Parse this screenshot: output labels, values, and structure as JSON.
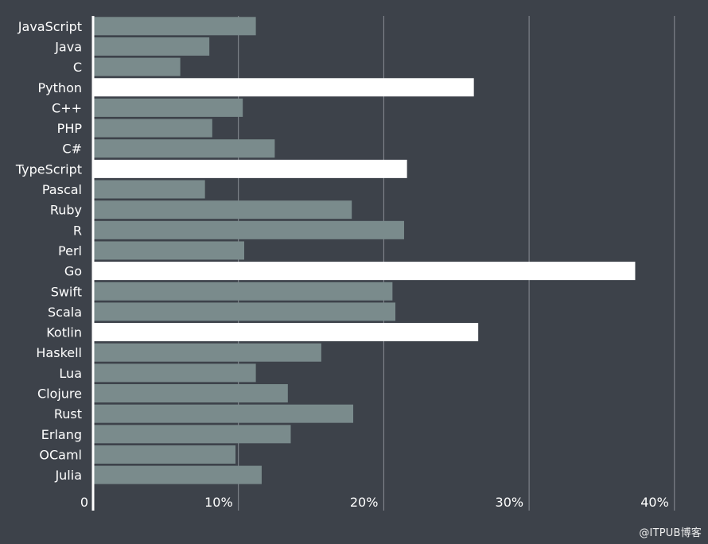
{
  "chart_data": {
    "type": "bar",
    "orientation": "horizontal",
    "title": "",
    "xlabel": "",
    "ylabel": "",
    "xlim": [
      0,
      40
    ],
    "x_ticks": [
      0,
      10,
      20,
      30,
      40
    ],
    "x_tick_labels": [
      "0",
      "10%",
      "20%",
      "30%",
      "40%"
    ],
    "grid": true,
    "categories": [
      "JavaScript",
      "Java",
      "C",
      "Python",
      "C++",
      "PHP",
      "C#",
      "TypeScript",
      "Pascal",
      "Ruby",
      "R",
      "Perl",
      "Go",
      "Swift",
      "Scala",
      "Kotlin",
      "Haskell",
      "Lua",
      "Clojure",
      "Rust",
      "Erlang",
      "OCaml",
      "Julia"
    ],
    "values": [
      11.2,
      8.0,
      6.0,
      26.2,
      10.3,
      8.2,
      12.5,
      21.6,
      7.7,
      17.8,
      21.4,
      10.4,
      37.3,
      20.6,
      20.8,
      26.5,
      15.7,
      11.2,
      13.4,
      17.9,
      13.6,
      9.8,
      11.6
    ],
    "highlighted": [
      "Python",
      "TypeScript",
      "Go",
      "Kotlin"
    ],
    "colors": {
      "background": "#3d424a",
      "bar": "#7a8b8c",
      "bar_highlight": "#ffffff",
      "grid": "#8a8f96",
      "axis": "#ffffff",
      "text": "#ffffff"
    }
  },
  "watermark": "@ITPUB博客"
}
